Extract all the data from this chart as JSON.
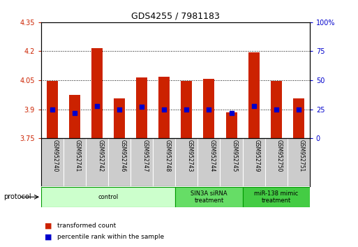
{
  "title": "GDS4255 / 7981183",
  "samples": [
    "GSM952740",
    "GSM952741",
    "GSM952742",
    "GSM952746",
    "GSM952747",
    "GSM952748",
    "GSM952743",
    "GSM952744",
    "GSM952745",
    "GSM952749",
    "GSM952750",
    "GSM952751"
  ],
  "bar_values": [
    4.048,
    3.975,
    4.215,
    3.955,
    4.065,
    4.068,
    4.048,
    4.057,
    3.885,
    4.193,
    4.048,
    3.955
  ],
  "percentile_values": [
    25,
    22,
    28,
    25,
    27,
    25,
    25,
    25,
    22,
    28,
    25,
    25
  ],
  "bar_bottom": 3.75,
  "ylim_left": [
    3.75,
    4.35
  ],
  "ylim_right": [
    0,
    100
  ],
  "yticks_left": [
    3.75,
    3.9,
    4.05,
    4.2,
    4.35
  ],
  "ytick_labels_left": [
    "3.75",
    "3.9",
    "4.05",
    "4.2",
    "4.35"
  ],
  "yticks_right": [
    0,
    25,
    50,
    75,
    100
  ],
  "ytick_labels_right": [
    "0",
    "25",
    "50",
    "75",
    "100%"
  ],
  "dotted_lines": [
    3.9,
    4.05,
    4.2
  ],
  "bar_color": "#cc2200",
  "dot_color": "#0000cc",
  "groups": [
    {
      "label": "control",
      "indices": [
        0,
        1,
        2,
        3,
        4,
        5
      ],
      "color": "#ccffcc"
    },
    {
      "label": "SIN3A siRNA\ntreatment",
      "indices": [
        6,
        7,
        8
      ],
      "color": "#66dd66"
    },
    {
      "label": "miR-138 mimic\ntreatment",
      "indices": [
        9,
        10,
        11
      ],
      "color": "#44cc44"
    }
  ],
  "legend_items": [
    {
      "label": "transformed count",
      "color": "#cc2200"
    },
    {
      "label": "percentile rank within the sample",
      "color": "#0000cc"
    }
  ],
  "background_color": "#ffffff",
  "label_area_color": "#cccccc",
  "bar_width": 0.5
}
